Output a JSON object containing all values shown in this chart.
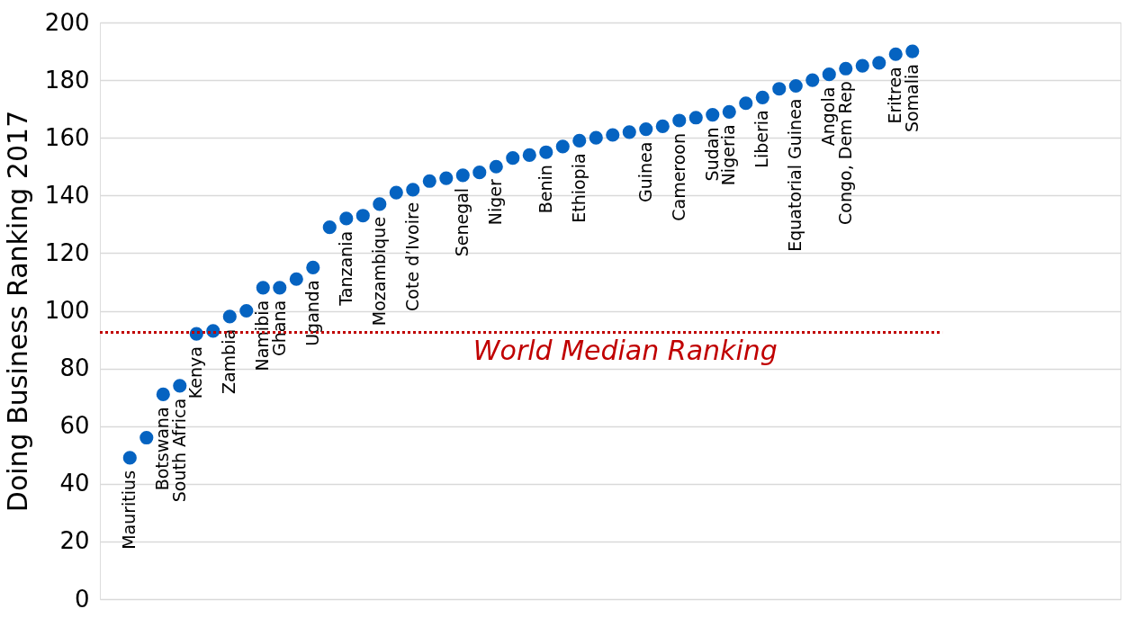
{
  "chart_data": {
    "type": "scatter",
    "ylabel": "Doing Business Ranking 2017",
    "categories": [
      "Mauritius",
      null,
      "Botswana",
      "South Africa",
      "Kenya",
      null,
      "Zambia",
      null,
      "Namibia",
      "Ghana",
      null,
      "Uganda",
      null,
      "Tanzania",
      null,
      "Mozambique",
      null,
      "Cote d’Ivoire",
      null,
      null,
      "Senegal",
      null,
      "Niger",
      null,
      null,
      "Benin",
      null,
      "Ethiopia",
      null,
      null,
      null,
      "Guinea",
      null,
      "Cameroon",
      null,
      "Sudan",
      "Nigeria",
      null,
      "Liberia",
      null,
      "Equatorial Guinea",
      null,
      "Angola",
      "Congo, Dem Rep",
      null,
      null,
      "Eritrea",
      "Somalia"
    ],
    "series": [
      {
        "color": "#0563c1",
        "values": [
          49,
          56,
          71,
          74,
          92,
          93,
          98,
          100,
          108,
          108,
          111,
          115,
          129,
          132,
          133,
          137,
          141,
          142,
          145,
          146,
          147,
          148,
          150,
          153,
          154,
          155,
          157,
          159,
          160,
          161,
          162,
          163,
          164,
          166,
          167,
          168,
          169,
          172,
          174,
          177,
          178,
          180,
          182,
          184,
          185,
          186,
          189,
          190
        ]
      }
    ],
    "marker": "circle",
    "ylim": [
      0,
      200
    ],
    "yticks": [
      0,
      20,
      40,
      60,
      80,
      100,
      120,
      140,
      160,
      180,
      200
    ],
    "grid": "y",
    "tick_labels": "y",
    "ref_lines": [
      {
        "axis": "y",
        "value": 92.5,
        "label": "World Median Ranking",
        "color": "#c00000",
        "line_style": "dotted"
      }
    ]
  }
}
